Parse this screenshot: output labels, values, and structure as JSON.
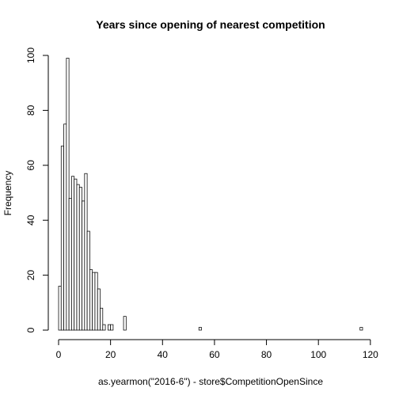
{
  "chart_data": {
    "type": "bar",
    "title": "Years since opening of nearest competition",
    "xlabel": "as.yearmon(\"2016-6\") - store$CompetitionOpenSince",
    "ylabel": "Frequency",
    "bin_width": 1,
    "bins_start": [
      0,
      1,
      2,
      3,
      4,
      5,
      6,
      7,
      8,
      9,
      10,
      11,
      12,
      13,
      14,
      15,
      16,
      17,
      18,
      19,
      20,
      21,
      22,
      23,
      24,
      25,
      26,
      27,
      28,
      29,
      30,
      31,
      32,
      33,
      34,
      35,
      36,
      37,
      38,
      39,
      40,
      41,
      42,
      43,
      44,
      45,
      46,
      47,
      48,
      49,
      50,
      51,
      52,
      53,
      54,
      55,
      56,
      57,
      58,
      59,
      60,
      61,
      62,
      63,
      64,
      65,
      66,
      67,
      68,
      69,
      70,
      71,
      72,
      73,
      74,
      75,
      76,
      77,
      78,
      79,
      80,
      81,
      82,
      83,
      84,
      85,
      86,
      87,
      88,
      89,
      90,
      91,
      92,
      93,
      94,
      95,
      96,
      97,
      98,
      99,
      100,
      101,
      102,
      103,
      104,
      105,
      106,
      107,
      108,
      109,
      110,
      111,
      112,
      113,
      114,
      115,
      116
    ],
    "values": [
      16,
      67,
      75,
      99,
      48,
      56,
      55,
      53,
      52,
      47,
      57,
      36,
      22,
      21,
      21,
      15,
      8,
      2,
      0,
      2,
      2,
      0,
      0,
      0,
      0,
      5,
      0,
      0,
      0,
      0,
      0,
      0,
      0,
      0,
      0,
      0,
      0,
      0,
      0,
      0,
      0,
      0,
      0,
      0,
      0,
      0,
      0,
      0,
      0,
      0,
      0,
      0,
      0,
      0,
      1,
      0,
      0,
      0,
      0,
      0,
      0,
      0,
      0,
      0,
      0,
      0,
      0,
      0,
      0,
      0,
      0,
      0,
      0,
      0,
      0,
      0,
      0,
      0,
      0,
      0,
      0,
      0,
      0,
      0,
      0,
      0,
      0,
      0,
      0,
      0,
      0,
      0,
      0,
      0,
      0,
      0,
      0,
      0,
      0,
      0,
      0,
      0,
      0,
      0,
      0,
      0,
      0,
      0,
      0,
      0,
      0,
      0,
      0,
      0,
      0,
      0,
      1
    ],
    "xlim": [
      0,
      117
    ],
    "ylim": [
      0,
      100
    ],
    "x_ticks": [
      "0",
      "20",
      "40",
      "60",
      "80",
      "100",
      "120"
    ],
    "y_ticks": [
      "0",
      "20",
      "40",
      "60",
      "80",
      "100"
    ],
    "grid": false,
    "bar_fill": "#ffffff",
    "bar_stroke": "#000000"
  }
}
